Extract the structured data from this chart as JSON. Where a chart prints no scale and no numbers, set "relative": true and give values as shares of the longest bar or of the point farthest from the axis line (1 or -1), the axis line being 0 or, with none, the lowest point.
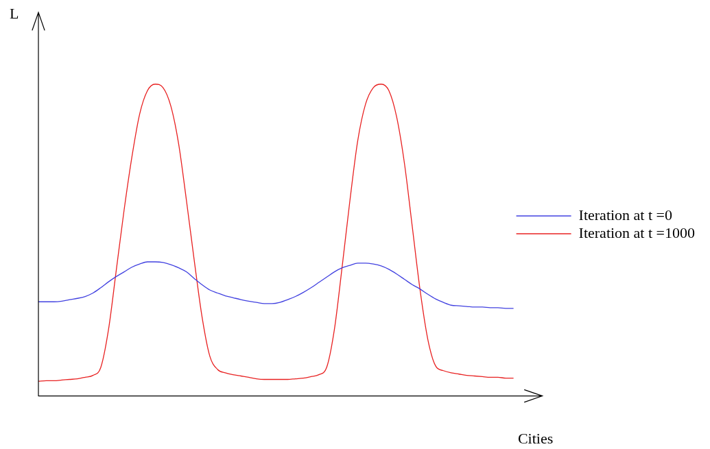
{
  "chart_data": {
    "type": "line",
    "relative": true,
    "xlabel": "Cities",
    "ylabel": "L",
    "legend": "right",
    "marker": "none",
    "line_style": "solid",
    "categories": [
      null,
      null,
      null,
      null,
      null,
      null,
      null,
      null,
      null,
      null,
      null,
      null,
      null,
      null,
      null,
      null,
      null,
      null,
      null,
      null,
      null,
      null,
      null,
      null,
      null,
      null,
      null,
      null,
      null,
      null,
      null,
      null,
      null,
      null,
      null,
      null,
      null,
      null,
      null,
      null,
      null,
      null,
      null,
      null,
      null,
      null,
      null,
      null,
      null,
      null,
      null,
      null,
      null,
      null,
      null,
      null,
      null,
      null,
      null,
      null,
      null,
      null
    ],
    "series": [
      {
        "name": "Iteration at t =0",
        "color": "#4040e0",
        "values": [
          0.302,
          0.302,
          0.302,
          0.304,
          0.309,
          0.313,
          0.319,
          0.33,
          0.347,
          0.366,
          0.383,
          0.398,
          0.413,
          0.423,
          0.43,
          0.43,
          0.428,
          0.421,
          0.411,
          0.398,
          0.377,
          0.357,
          0.34,
          0.33,
          0.321,
          0.315,
          0.309,
          0.304,
          0.3,
          0.296,
          0.296,
          0.3,
          0.309,
          0.319,
          0.332,
          0.347,
          0.364,
          0.381,
          0.398,
          0.411,
          0.419,
          0.426,
          0.426,
          0.423,
          0.417,
          0.406,
          0.391,
          0.374,
          0.357,
          0.343,
          0.326,
          0.311,
          0.3,
          0.291,
          0.289,
          0.287,
          0.285,
          0.285,
          0.283,
          0.283,
          0.281,
          0.281
        ]
      },
      {
        "name": "Iteration at t =1000",
        "color": "#e82020",
        "values": [
          0.047,
          0.049,
          0.049,
          0.051,
          0.053,
          0.055,
          0.06,
          0.066,
          0.091,
          0.213,
          0.404,
          0.596,
          0.766,
          0.904,
          0.979,
          1.0,
          0.989,
          0.93,
          0.809,
          0.628,
          0.436,
          0.255,
          0.128,
          0.085,
          0.074,
          0.068,
          0.064,
          0.06,
          0.055,
          0.053,
          0.053,
          0.053,
          0.053,
          0.055,
          0.057,
          0.062,
          0.068,
          0.091,
          0.213,
          0.415,
          0.628,
          0.819,
          0.936,
          0.989,
          1.0,
          0.979,
          0.894,
          0.745,
          0.543,
          0.34,
          0.181,
          0.096,
          0.081,
          0.074,
          0.07,
          0.066,
          0.064,
          0.062,
          0.06,
          0.06,
          0.057,
          0.057
        ]
      }
    ]
  }
}
